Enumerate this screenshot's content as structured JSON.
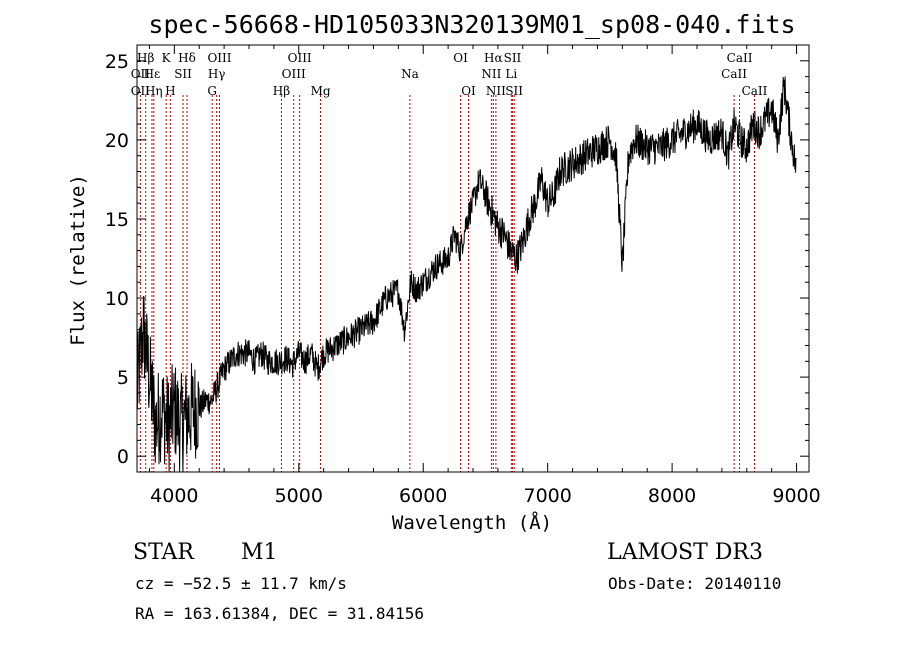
{
  "chart_data": {
    "type": "line",
    "title": "spec-56668-HD105033N320139M01_sp08-040.fits",
    "xlabel": "Wavelength (Å)",
    "ylabel": "Flux (relative)",
    "xlim": [
      3700,
      9100
    ],
    "ylim": [
      -1,
      26
    ],
    "xticks": [
      4000,
      5000,
      6000,
      7000,
      8000,
      9000
    ],
    "yticks": [
      0,
      5,
      10,
      15,
      20,
      25
    ],
    "series": [
      {
        "name": "spectrum",
        "x": [
          3700,
          3750,
          3800,
          3850,
          3900,
          3950,
          4000,
          4050,
          4100,
          4150,
          4200,
          4250,
          4300,
          4350,
          4400,
          4450,
          4500,
          4550,
          4600,
          4650,
          4700,
          4750,
          4800,
          4850,
          4900,
          4950,
          5000,
          5050,
          5100,
          5150,
          5200,
          5300,
          5400,
          5500,
          5600,
          5700,
          5800,
          5850,
          5900,
          5950,
          6000,
          6100,
          6200,
          6250,
          6300,
          6350,
          6400,
          6450,
          6500,
          6550,
          6600,
          6650,
          6700,
          6750,
          6800,
          6850,
          6900,
          6950,
          7000,
          7050,
          7100,
          7200,
          7300,
          7400,
          7500,
          7550,
          7600,
          7650,
          7700,
          7800,
          7900,
          8000,
          8100,
          8200,
          8300,
          8400,
          8450,
          8500,
          8550,
          8600,
          8650,
          8700,
          8800,
          8850,
          8900,
          8950,
          9000
        ],
        "y": [
          4,
          8,
          5,
          2,
          3,
          2,
          3,
          2,
          2.5,
          3,
          3,
          3.5,
          3.5,
          4.5,
          5.5,
          6,
          6.5,
          6.5,
          6.5,
          6,
          6.5,
          6,
          6,
          6,
          6.2,
          5.8,
          6.5,
          6,
          6.5,
          5.5,
          6.5,
          7,
          7.5,
          8,
          8.5,
          10,
          10.5,
          8,
          11,
          10.5,
          11,
          12,
          12.5,
          14,
          13,
          15,
          16,
          17.5,
          16.5,
          15.5,
          14.5,
          14,
          13,
          12.5,
          13.5,
          15,
          16,
          17.5,
          16,
          16.5,
          18,
          18.5,
          19,
          19.5,
          20,
          19,
          12,
          19,
          20,
          19.5,
          19.5,
          20,
          20.5,
          21,
          20,
          20.5,
          19,
          21,
          20,
          19.5,
          21,
          20.5,
          22,
          20,
          23.5,
          20.5,
          18
        ]
      }
    ],
    "spectral_lines": [
      {
        "label": "OII",
        "wave": 3727,
        "row": 2
      },
      {
        "label": "OII",
        "wave": 3727,
        "row": 3
      },
      {
        "label": "Hβ",
        "wave": 3770,
        "row": 1
      },
      {
        "label": "Hε",
        "wave": 3820,
        "row": 2
      },
      {
        "label": "Hη",
        "wave": 3835,
        "row": 3
      },
      {
        "label": "K",
        "wave": 3934,
        "row": 1
      },
      {
        "label": "H",
        "wave": 3968,
        "row": 3
      },
      {
        "label": "SII",
        "wave": 4070,
        "row": 2
      },
      {
        "label": "Hδ",
        "wave": 4102,
        "row": 1
      },
      {
        "label": "OIII",
        "wave": 4363,
        "row": 1
      },
      {
        "label": "Hγ",
        "wave": 4340,
        "row": 2
      },
      {
        "label": "G",
        "wave": 4304,
        "row": 3
      },
      {
        "label": "Hβ",
        "wave": 4861,
        "row": 3
      },
      {
        "label": "OIII",
        "wave": 5007,
        "row": 1
      },
      {
        "label": "OIII",
        "wave": 4959,
        "row": 2
      },
      {
        "label": "Mg",
        "wave": 5175,
        "row": 3
      },
      {
        "label": "Na",
        "wave": 5893,
        "row": 2
      },
      {
        "label": "OI",
        "wave": 6300,
        "row": 1
      },
      {
        "label": "OI",
        "wave": 6364,
        "row": 3
      },
      {
        "label": "Hα",
        "wave": 6563,
        "row": 1
      },
      {
        "label": "NII",
        "wave": 6548,
        "row": 2
      },
      {
        "label": "NII",
        "wave": 6584,
        "row": 3
      },
      {
        "label": "SII",
        "wave": 6717,
        "row": 1
      },
      {
        "label": "Li",
        "wave": 6708,
        "row": 2
      },
      {
        "label": "SII",
        "wave": 6731,
        "row": 3
      },
      {
        "label": "CaII",
        "wave": 8542,
        "row": 1
      },
      {
        "label": "CaII",
        "wave": 8498,
        "row": 2
      },
      {
        "label": "CaII",
        "wave": 8662,
        "row": 3
      }
    ]
  },
  "info": {
    "object_type": "STAR",
    "subclass": "M1",
    "survey": "LAMOST DR3",
    "redshift": "cz = −52.5 ± 11.7 km/s",
    "obs_date": "Obs-Date: 20140110",
    "coords": "RA = 163.61384, DEC =  31.84156"
  },
  "colors": {
    "line_marker": "#c00000",
    "spectrum": "#000000"
  }
}
